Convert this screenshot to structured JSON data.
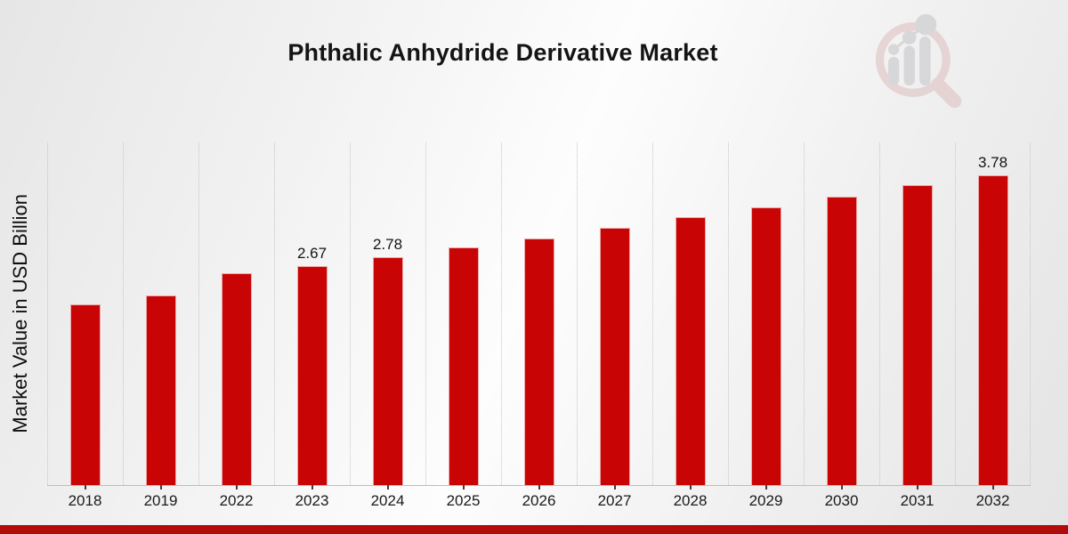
{
  "page": {
    "title": "Phthalic Anhydride Derivative Market",
    "watermark_icon": "magnifier-bar-chart-logo",
    "accent_color": "#c80404",
    "footer_band_color": "#b20b0b"
  },
  "chart_data": {
    "type": "bar",
    "title": "Phthalic Anhydride Derivative Market",
    "xlabel": "",
    "ylabel": "Market Value in USD Billion",
    "categories": [
      "2018",
      "2019",
      "2022",
      "2023",
      "2024",
      "2025",
      "2026",
      "2027",
      "2028",
      "2029",
      "2030",
      "2031",
      "2032"
    ],
    "values": [
      2.2,
      2.31,
      2.58,
      2.67,
      2.78,
      2.9,
      3.01,
      3.14,
      3.27,
      3.39,
      3.52,
      3.66,
      3.78
    ],
    "data_labels": {
      "2023": "2.67",
      "2024": "2.78",
      "2032": "3.78"
    },
    "bar_color": "#c80404",
    "ylim": [
      0,
      4.18
    ],
    "grid": "vertical-dotted",
    "legend": "none",
    "y_axis_ticks_visible": false
  }
}
